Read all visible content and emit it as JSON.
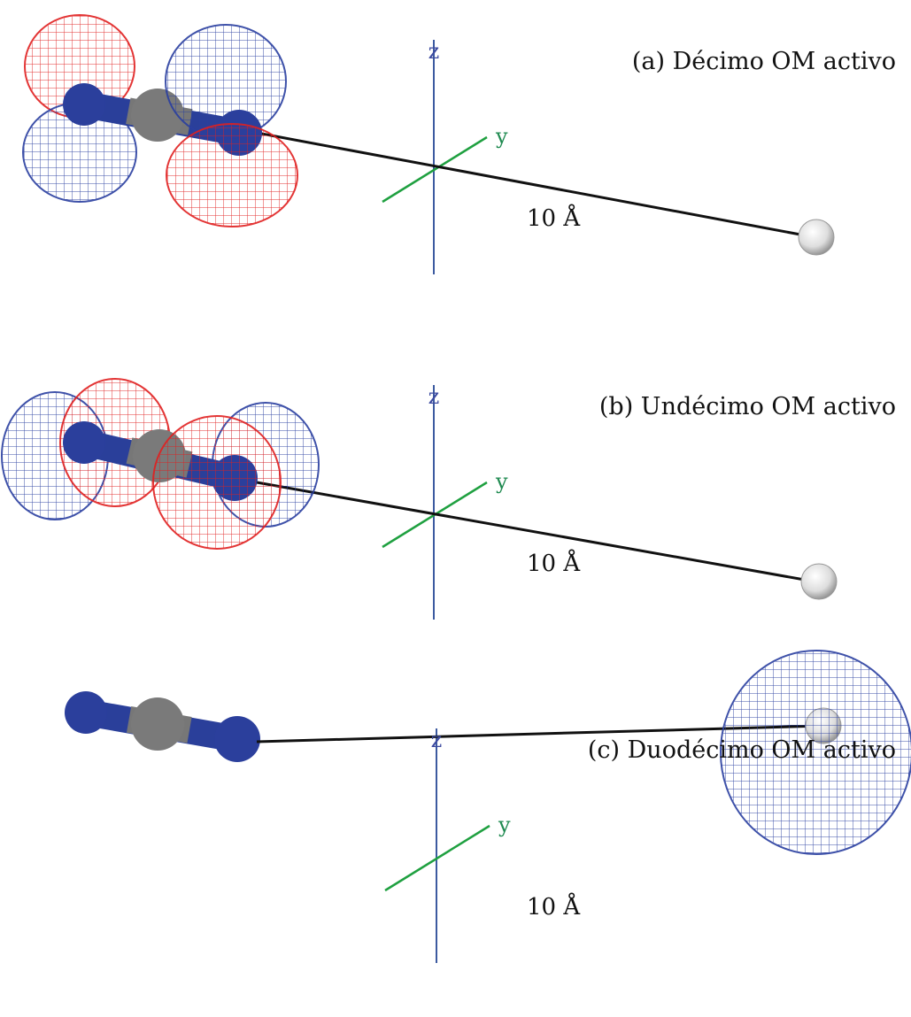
{
  "panels": [
    {
      "caption": "(a) Décimo OM activo",
      "z_label": "z",
      "y_label": "y",
      "distance_label": "10 Å"
    },
    {
      "caption": "(b) Undécimo OM activo",
      "z_label": "z",
      "y_label": "y",
      "distance_label": "10 Å"
    },
    {
      "caption": "(c) Duodécimo OM activo",
      "z_label": "z",
      "y_label": "y",
      "distance_label": "10 Å"
    }
  ]
}
